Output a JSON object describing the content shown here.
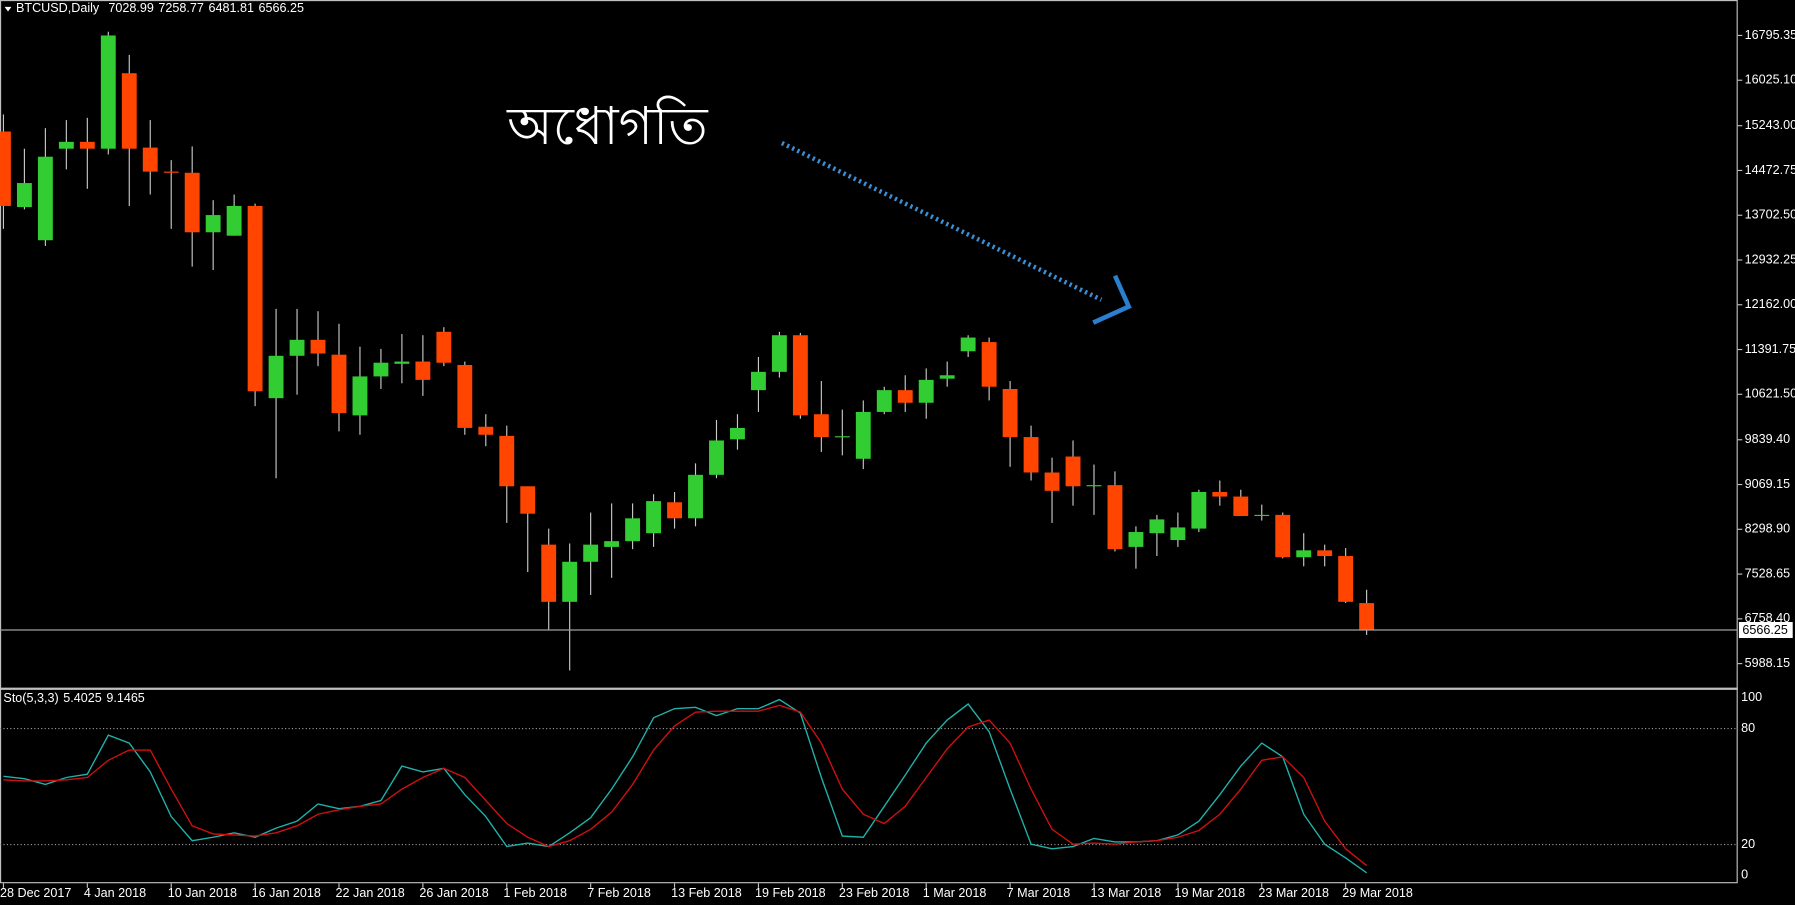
{
  "chart_data": [
    {
      "type": "candlestick",
      "title": "BTCUSD,Daily",
      "annotation": "অধোগতি",
      "categories": [
        "28 Dec 2017",
        null,
        null,
        null,
        "4 Jan 2018",
        null,
        null,
        null,
        "10 Jan 2018",
        null,
        null,
        null,
        "16 Jan 2018",
        null,
        null,
        null,
        "22 Jan 2018",
        null,
        null,
        null,
        "26 Jan 2018",
        null,
        null,
        null,
        "1 Feb 2018",
        null,
        null,
        null,
        "7 Feb 2018",
        null,
        null,
        null,
        "13 Feb 2018",
        null,
        null,
        null,
        "19 Feb 2018",
        null,
        null,
        null,
        "23 Feb 2018",
        null,
        null,
        null,
        "1 Mar 2018",
        null,
        null,
        null,
        "7 Mar 2018",
        null,
        null,
        null,
        "13 Mar 2018",
        null,
        null,
        null,
        "19 Mar 2018",
        null,
        null,
        null,
        "23 Mar 2018",
        null,
        null,
        null,
        "29 Mar 2018",
        null
      ],
      "open": [
        15142,
        13843,
        13272,
        14847,
        14965,
        14847,
        16146,
        14866,
        14453,
        14433,
        13409,
        13350,
        13862,
        10555,
        11284,
        11559,
        11303,
        10259,
        10929,
        11146,
        11185,
        11697,
        11126,
        10063,
        9906,
        9039,
        8035,
        7051,
        7740,
        7996,
        8095,
        8232,
        8764,
        8488,
        9236,
        9847,
        10693,
        11008,
        11638,
        10279,
        9886,
        9512,
        10318,
        10693,
        10476,
        10890,
        11362,
        11520,
        10713,
        9886,
        9276,
        9551,
        9039,
        9059,
        7996,
        8232,
        8114,
        8311,
        8941,
        8862,
        8547,
        8547,
        7819,
        7937,
        7839,
        7028.99
      ],
      "high": [
        15437,
        14847,
        15201,
        15339,
        15378,
        16860,
        16461,
        15339,
        14650,
        14886,
        13961,
        14059,
        13902,
        12091,
        12091,
        12051,
        11835,
        11441,
        11402,
        11658,
        11638,
        11776,
        11185,
        10279,
        10082,
        9039,
        8311,
        8055,
        8587,
        8744,
        8744,
        8902,
        8941,
        9433,
        10181,
        10279,
        11264,
        11697,
        11677,
        10850,
        10358,
        10516,
        10752,
        10949,
        11067,
        11185,
        11638,
        11598,
        10850,
        10082,
        9531,
        9827,
        9413,
        9295,
        8350,
        8547,
        8587,
        8980,
        9138,
        8980,
        8724,
        8587,
        8232,
        8035,
        7976,
        7258.77
      ],
      "low": [
        13468,
        13803,
        13173,
        14492,
        14157,
        14748,
        13862,
        14059,
        13468,
        12819,
        12760,
        13350,
        10417,
        9177,
        10614,
        11106,
        9984,
        9925,
        10713,
        10811,
        10594,
        11106,
        9925,
        9728,
        8409,
        7563,
        6558,
        5870,
        7169,
        7464,
        7957,
        7996,
        8311,
        8350,
        9177,
        9669,
        10318,
        10909,
        10201,
        9630,
        9571,
        9335,
        10279,
        10318,
        10201,
        10752,
        11264,
        10516,
        9374,
        9138,
        8409,
        8705,
        8547,
        7917,
        7622,
        7839,
        7996,
        8252,
        8705,
        8528,
        8449,
        7799,
        7662,
        7662,
        7031,
        6481.81
      ],
      "close": [
        13862,
        14256,
        14709,
        14965,
        14847,
        16795,
        14847,
        14453,
        14433,
        13409,
        13705,
        13862,
        10673,
        11284,
        11559,
        11323,
        10299,
        10929,
        11165,
        11185,
        10870,
        11165,
        10043,
        9925,
        9039,
        8567,
        7051,
        7740,
        8035,
        8095,
        8488,
        8784,
        8488,
        9236,
        9827,
        10043,
        11008,
        11638,
        10259,
        9886,
        9900,
        10318,
        10693,
        10476,
        10870,
        10949,
        11598,
        10752,
        9886,
        9276,
        8961,
        9039,
        9059,
        7957,
        8252,
        8469,
        8331,
        8941,
        8862,
        8528,
        8547,
        7819,
        7937,
        7839,
        7051,
        6566.25
      ],
      "up_color": "#32cd32",
      "down_color": "#ff4500",
      "wick_color": "#c8c8c8",
      "ylim": [
        5575,
        17366
      ],
      "yticks": [
        16795.35,
        {
          "value": 16025.1,
          "label": "16025.10"
        },
        {
          "value": 15243,
          "label": "15243.00"
        },
        14472.75,
        {
          "value": 13702.5,
          "label": "13702.50"
        },
        12932.25,
        {
          "value": 12162,
          "label": "12162.00"
        },
        11391.75,
        {
          "value": 10621.5,
          "label": "10621.50"
        },
        {
          "value": 9839.4,
          "label": "9839.40"
        },
        9069.15,
        {
          "value": 8298.9,
          "label": "8298.90"
        },
        7528.65,
        {
          "value": 6758.4,
          "label": "6758.40"
        },
        5988.15
      ]
    },
    {
      "type": "line",
      "title": "Sto(5,3,3)",
      "series": [
        {
          "color": "#20b2aa",
          "values": [
            55.3,
            54.1,
            51.1,
            54.7,
            56.4,
            76.6,
            72.5,
            57.6,
            34.5,
            22,
            23.8,
            26.1,
            23.8,
            28.5,
            32.1,
            41,
            38.6,
            39.8,
            42.8,
            60.6,
            57.6,
            59.4,
            45.8,
            34.5,
            19,
            20.8,
            19,
            26.1,
            33.9,
            48.7,
            65.4,
            85.6,
            90.3,
            91,
            86.7,
            90.3,
            90.3,
            95,
            88,
            54.7,
            24.4,
            23.8,
            39.8,
            55.9,
            72.5,
            84.4,
            92.7,
            78.4,
            48.7,
            20.2,
            17.8,
            19,
            23.2,
            21.4,
            21.4,
            22,
            25,
            32.1,
            45.8,
            60.6,
            72.5,
            65.4,
            35.7,
            20.2,
            13.1,
            5.4025
          ]
        },
        {
          "color": "#d01010",
          "values": [
            53.5,
            52.9,
            52.9,
            53.5,
            54.7,
            63.6,
            68.9,
            68.9,
            48.7,
            29.7,
            25.5,
            25,
            24.4,
            26.1,
            29.7,
            35.7,
            38,
            39.8,
            41,
            48.7,
            54.7,
            59.4,
            54.7,
            42.8,
            30.9,
            23.8,
            19,
            22,
            27.9,
            36.8,
            51.1,
            68.9,
            81.4,
            88.5,
            89,
            89,
            89,
            92,
            88.5,
            72.5,
            48.7,
            35.7,
            30.9,
            39.8,
            54.7,
            69.5,
            80.8,
            84.4,
            72.5,
            48.7,
            27.9,
            20.2,
            20.8,
            20.2,
            21.4,
            22,
            23.8,
            27.3,
            35.7,
            48.7,
            63.6,
            65.4,
            54.7,
            32.1,
            17.8,
            9.1465
          ]
        }
      ],
      "ylim": [
        0,
        100
      ],
      "yticks": [
        0,
        20,
        80,
        100
      ]
    }
  ]
}
